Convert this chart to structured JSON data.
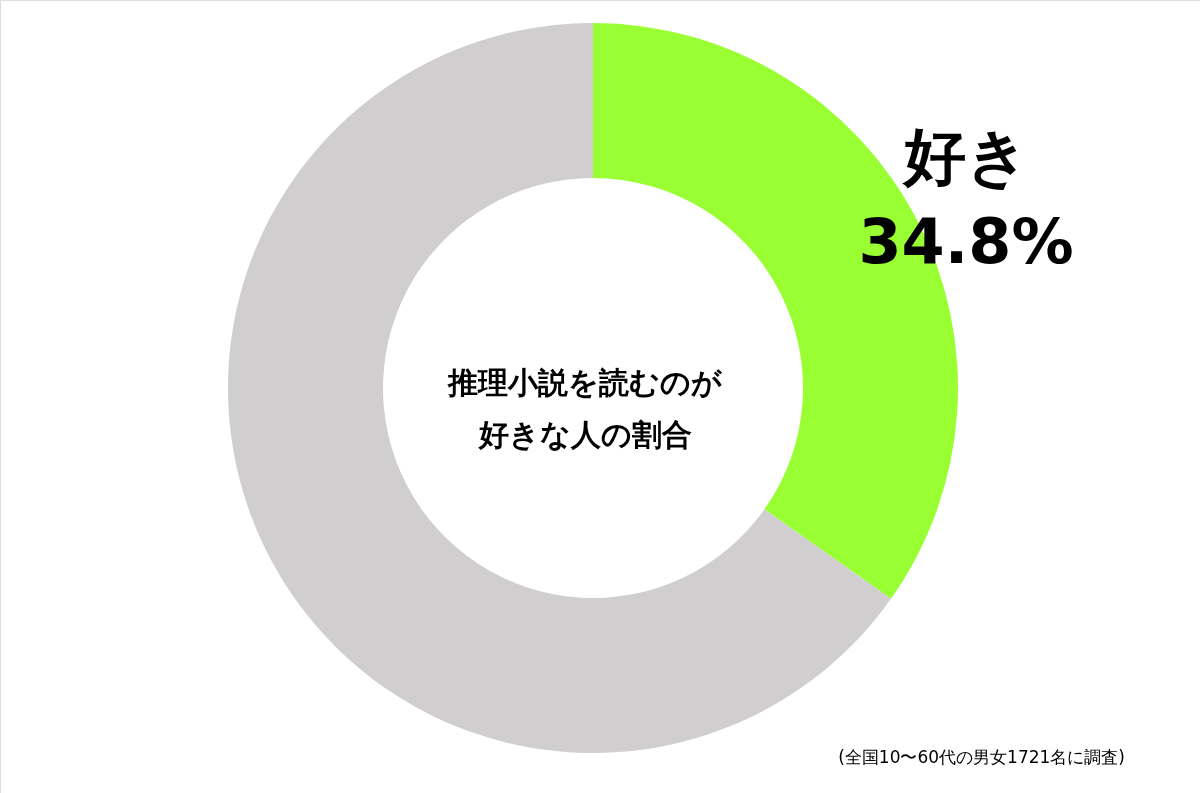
{
  "chart_data": {
    "type": "donut",
    "title": "推理小説を読むのが好きな人の割合",
    "categories": [
      "好き",
      null
    ],
    "values": [
      34.8,
      65.2
    ],
    "colors": [
      "#99ff33",
      "#d0cece"
    ],
    "value_labels": [
      "34.8%",
      null
    ],
    "annotations": [
      "(全国10〜60代の男女1721名に調査)"
    ]
  }
}
